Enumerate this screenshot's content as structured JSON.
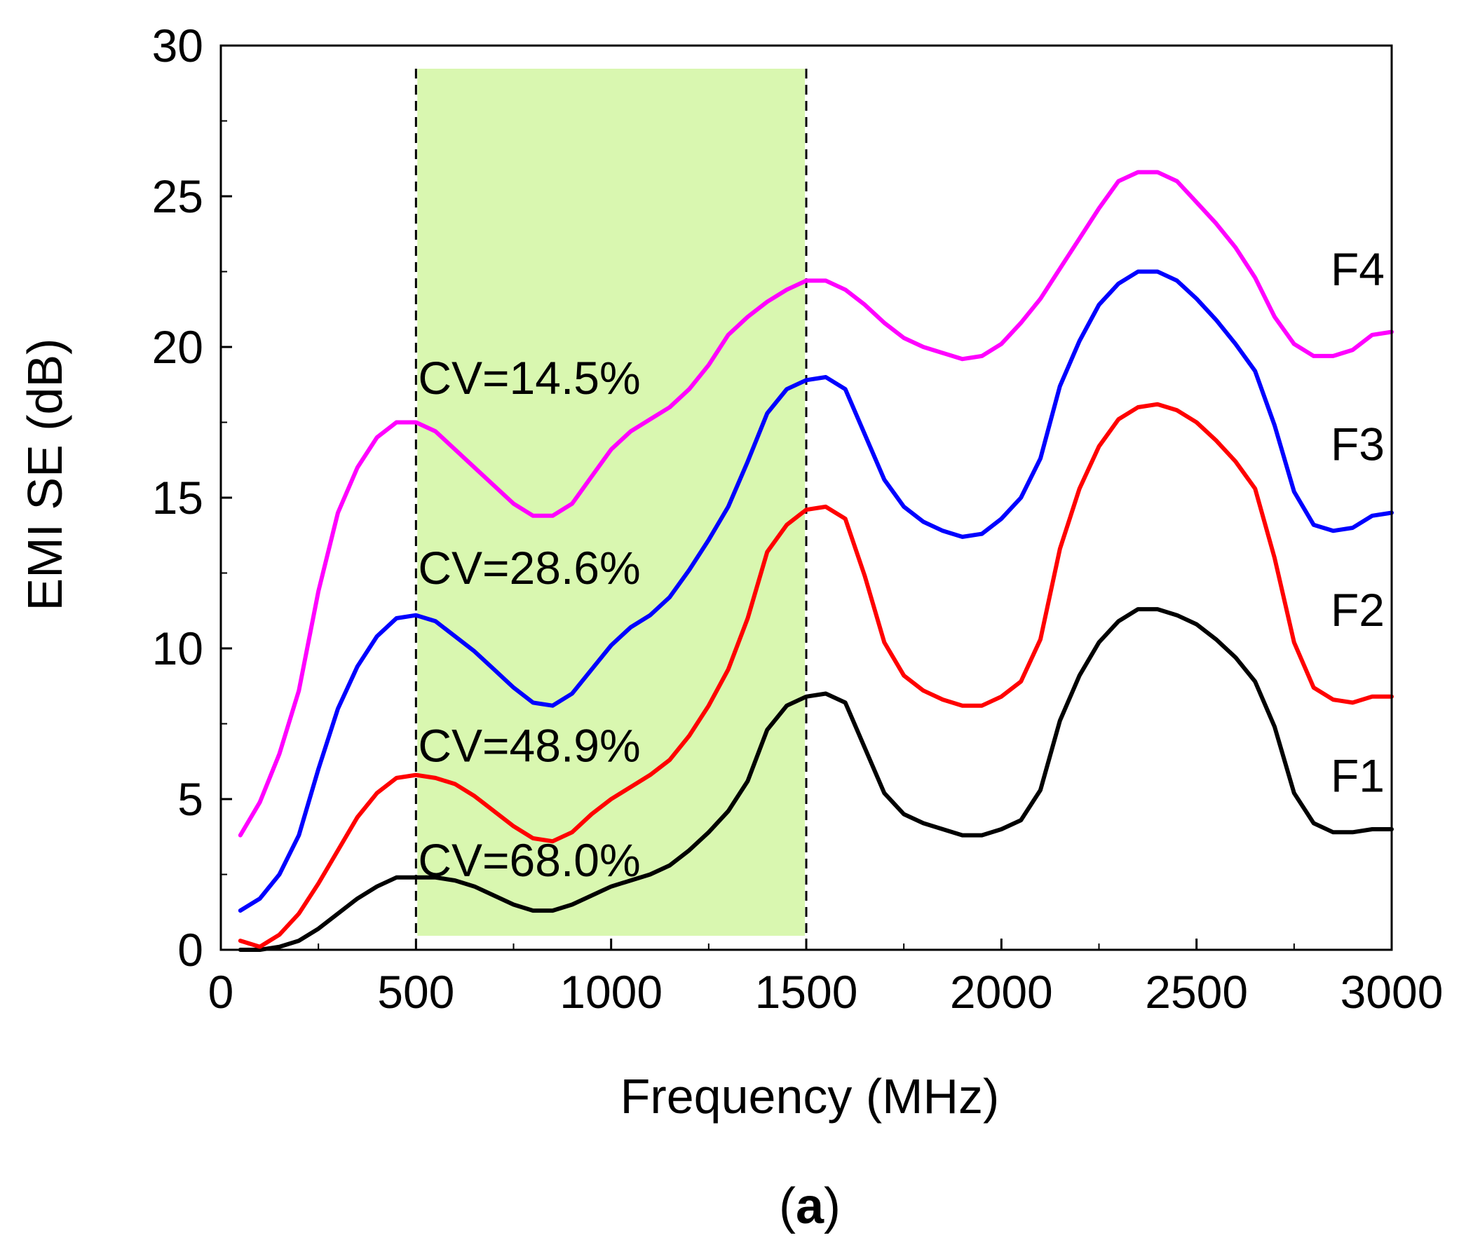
{
  "chart_data": {
    "type": "line",
    "xlabel": "Frequency (MHz)",
    "ylabel": "EMI SE (dB)",
    "xlim": [
      0,
      3000
    ],
    "ylim": [
      0,
      30
    ],
    "xticks": [
      "0",
      "500",
      "1000",
      "1500",
      "2000",
      "2500",
      "3000"
    ],
    "yticks": [
      "0",
      "5",
      "10",
      "15",
      "20",
      "25",
      "30"
    ],
    "grid": false,
    "highlight_band": {
      "from": 500,
      "to": 1500,
      "color": "#d9f7b0"
    },
    "reference_lines": [
      500,
      1500
    ],
    "series": [
      {
        "name": "F1",
        "color": "#000000",
        "end_label": "F1",
        "x": [
          50,
          100,
          150,
          200,
          250,
          300,
          350,
          400,
          450,
          500,
          550,
          600,
          650,
          700,
          750,
          800,
          850,
          900,
          950,
          1000,
          1050,
          1100,
          1150,
          1200,
          1250,
          1300,
          1350,
          1400,
          1450,
          1500,
          1550,
          1600,
          1650,
          1700,
          1750,
          1800,
          1850,
          1900,
          1950,
          2000,
          2050,
          2100,
          2150,
          2200,
          2250,
          2300,
          2350,
          2400,
          2450,
          2500,
          2550,
          2600,
          2650,
          2700,
          2750,
          2800,
          2850,
          2900,
          2950,
          3000
        ],
        "y": [
          0.0,
          0.0,
          0.1,
          0.3,
          0.7,
          1.2,
          1.7,
          2.1,
          2.4,
          2.4,
          2.4,
          2.3,
          2.1,
          1.8,
          1.5,
          1.3,
          1.3,
          1.5,
          1.8,
          2.1,
          2.3,
          2.5,
          2.8,
          3.3,
          3.9,
          4.6,
          5.6,
          7.3,
          8.1,
          8.4,
          8.5,
          8.2,
          6.7,
          5.2,
          4.5,
          4.2,
          4.0,
          3.8,
          3.8,
          4.0,
          4.3,
          5.3,
          7.6,
          9.1,
          10.2,
          10.9,
          11.3,
          11.3,
          11.1,
          10.8,
          10.3,
          9.7,
          8.9,
          7.4,
          5.2,
          4.2,
          3.9,
          3.9,
          4.0,
          4.0
        ]
      },
      {
        "name": "F2",
        "color": "#ff0000",
        "end_label": "F2",
        "x": [
          50,
          100,
          150,
          200,
          250,
          300,
          350,
          400,
          450,
          500,
          550,
          600,
          650,
          700,
          750,
          800,
          850,
          900,
          950,
          1000,
          1050,
          1100,
          1150,
          1200,
          1250,
          1300,
          1350,
          1400,
          1450,
          1500,
          1550,
          1600,
          1650,
          1700,
          1750,
          1800,
          1850,
          1900,
          1950,
          2000,
          2050,
          2100,
          2150,
          2200,
          2250,
          2300,
          2350,
          2400,
          2450,
          2500,
          2550,
          2600,
          2650,
          2700,
          2750,
          2800,
          2850,
          2900,
          2950,
          3000
        ],
        "y": [
          0.3,
          0.1,
          0.5,
          1.2,
          2.2,
          3.3,
          4.4,
          5.2,
          5.7,
          5.8,
          5.7,
          5.5,
          5.1,
          4.6,
          4.1,
          3.7,
          3.6,
          3.9,
          4.5,
          5.0,
          5.4,
          5.8,
          6.3,
          7.1,
          8.1,
          9.3,
          11.0,
          13.2,
          14.1,
          14.6,
          14.7,
          14.3,
          12.4,
          10.2,
          9.1,
          8.6,
          8.3,
          8.1,
          8.1,
          8.4,
          8.9,
          10.3,
          13.3,
          15.3,
          16.7,
          17.6,
          18.0,
          18.1,
          17.9,
          17.5,
          16.9,
          16.2,
          15.3,
          13.0,
          10.2,
          8.7,
          8.3,
          8.2,
          8.4,
          8.4
        ]
      },
      {
        "name": "F3",
        "color": "#0000ff",
        "end_label": "F3",
        "x": [
          50,
          100,
          150,
          200,
          250,
          300,
          350,
          400,
          450,
          500,
          550,
          600,
          650,
          700,
          750,
          800,
          850,
          900,
          950,
          1000,
          1050,
          1100,
          1150,
          1200,
          1250,
          1300,
          1350,
          1400,
          1450,
          1500,
          1550,
          1600,
          1650,
          1700,
          1750,
          1800,
          1850,
          1900,
          1950,
          2000,
          2050,
          2100,
          2150,
          2200,
          2250,
          2300,
          2350,
          2400,
          2450,
          2500,
          2550,
          2600,
          2650,
          2700,
          2750,
          2800,
          2850,
          2900,
          2950,
          3000
        ],
        "y": [
          1.3,
          1.7,
          2.5,
          3.8,
          6.0,
          8.0,
          9.4,
          10.4,
          11.0,
          11.1,
          10.9,
          10.4,
          9.9,
          9.3,
          8.7,
          8.2,
          8.1,
          8.5,
          9.3,
          10.1,
          10.7,
          11.1,
          11.7,
          12.6,
          13.6,
          14.7,
          16.2,
          17.8,
          18.6,
          18.9,
          19.0,
          18.6,
          17.1,
          15.6,
          14.7,
          14.2,
          13.9,
          13.7,
          13.8,
          14.3,
          15.0,
          16.3,
          18.7,
          20.2,
          21.4,
          22.1,
          22.5,
          22.5,
          22.2,
          21.6,
          20.9,
          20.1,
          19.2,
          17.4,
          15.2,
          14.1,
          13.9,
          14.0,
          14.4,
          14.5
        ]
      },
      {
        "name": "F4",
        "color": "#ff00ff",
        "end_label": "F4",
        "x": [
          50,
          100,
          150,
          200,
          250,
          300,
          350,
          400,
          450,
          500,
          550,
          600,
          650,
          700,
          750,
          800,
          850,
          900,
          950,
          1000,
          1050,
          1100,
          1150,
          1200,
          1250,
          1300,
          1350,
          1400,
          1450,
          1500,
          1550,
          1600,
          1650,
          1700,
          1750,
          1800,
          1850,
          1900,
          1950,
          2000,
          2050,
          2100,
          2150,
          2200,
          2250,
          2300,
          2350,
          2400,
          2450,
          2500,
          2550,
          2600,
          2650,
          2700,
          2750,
          2800,
          2850,
          2900,
          2950,
          3000
        ],
        "y": [
          3.8,
          4.9,
          6.5,
          8.6,
          11.9,
          14.5,
          16.0,
          17.0,
          17.5,
          17.5,
          17.2,
          16.6,
          16.0,
          15.4,
          14.8,
          14.4,
          14.4,
          14.8,
          15.7,
          16.6,
          17.2,
          17.6,
          18.0,
          18.6,
          19.4,
          20.4,
          21.0,
          21.5,
          21.9,
          22.2,
          22.2,
          21.9,
          21.4,
          20.8,
          20.3,
          20.0,
          19.8,
          19.6,
          19.7,
          20.1,
          20.8,
          21.6,
          22.6,
          23.6,
          24.6,
          25.5,
          25.8,
          25.8,
          25.5,
          24.8,
          24.1,
          23.3,
          22.3,
          21.0,
          20.1,
          19.7,
          19.7,
          19.9,
          20.4,
          20.5
        ]
      }
    ],
    "annotations": [
      {
        "text": "CV=14.5%",
        "x": 500,
        "y": 19.0
      },
      {
        "text": "CV=28.6%",
        "x": 500,
        "y": 12.7
      },
      {
        "text": "CV=48.9%",
        "x": 500,
        "y": 6.8
      },
      {
        "text": "CV=68.0%",
        "x": 500,
        "y": 3.0
      }
    ]
  },
  "caption": {
    "open": "(",
    "letter": "a",
    "close": ")"
  }
}
